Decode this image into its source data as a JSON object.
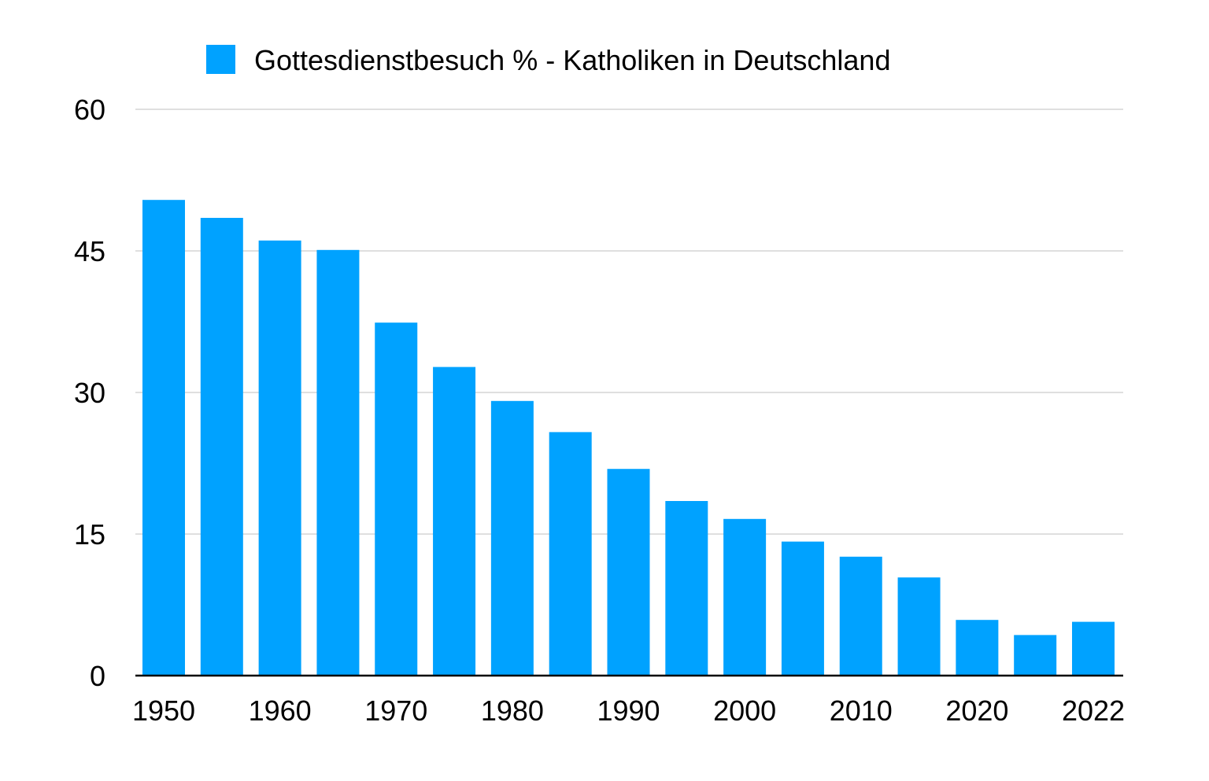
{
  "chart_data": {
    "type": "bar",
    "legend": {
      "label": "Gottesdienstbesuch % - Katholiken in Deutschland",
      "placement": "top-center"
    },
    "title": "",
    "xlabel": "",
    "ylabel": "",
    "ylim": [
      0,
      60
    ],
    "y_ticks": [
      0,
      15,
      30,
      45,
      60
    ],
    "x_tick_labels": [
      "1950",
      "1960",
      "1970",
      "1980",
      "1990",
      "2000",
      "2010",
      "2020",
      "2022"
    ],
    "grid": true,
    "colors": {
      "bar": "#00a2ff",
      "grid": "#cccccc",
      "axis": "#000000"
    },
    "series": [
      {
        "name": "Gottesdienstbesuch % - Katholiken in Deutschland",
        "points": [
          {
            "x": "1950",
            "value": 50.4
          },
          {
            "x": "1955",
            "value": 48.5
          },
          {
            "x": "1960",
            "value": 46.1
          },
          {
            "x": "1965",
            "value": 45.1
          },
          {
            "x": "1970",
            "value": 37.4
          },
          {
            "x": "1975",
            "value": 32.7
          },
          {
            "x": "1980",
            "value": 29.1
          },
          {
            "x": "1985",
            "value": 25.8
          },
          {
            "x": "1990",
            "value": 21.9
          },
          {
            "x": "1995",
            "value": 18.5
          },
          {
            "x": "2000",
            "value": 16.6
          },
          {
            "x": "2005",
            "value": 14.2
          },
          {
            "x": "2010",
            "value": 12.6
          },
          {
            "x": "2015",
            "value": 10.4
          },
          {
            "x": "2020",
            "value": 5.9
          },
          {
            "x": "2021",
            "value": 4.3
          },
          {
            "x": "2022",
            "value": 5.7
          }
        ]
      }
    ]
  }
}
